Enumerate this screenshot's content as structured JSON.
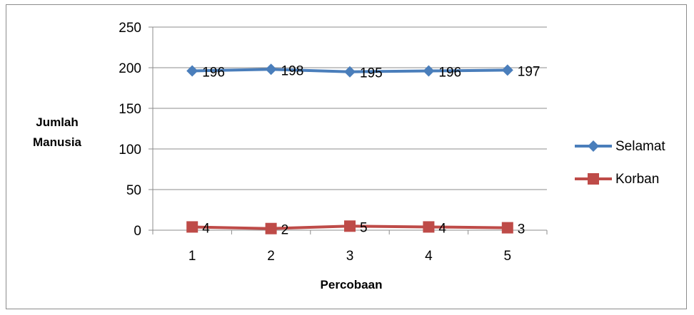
{
  "chart_data": {
    "type": "line",
    "categories": [
      "1",
      "2",
      "3",
      "4",
      "5"
    ],
    "series": [
      {
        "name": "Selamat",
        "values": [
          196,
          198,
          195,
          196,
          197
        ],
        "color": "#4a7ebb",
        "marker": "diamond"
      },
      {
        "name": "Korban",
        "values": [
          4,
          2,
          5,
          4,
          3
        ],
        "color": "#be4b48",
        "marker": "square"
      }
    ],
    "title": "",
    "xlabel": "Percobaan",
    "ylabel_lines": [
      "Jumlah",
      "Manusia"
    ],
    "ylim": [
      0,
      250
    ],
    "yticks": [
      "0",
      "50",
      "100",
      "150",
      "200",
      "250"
    ],
    "grid": "horizontal",
    "legend_position": "right",
    "data_labels": true
  }
}
